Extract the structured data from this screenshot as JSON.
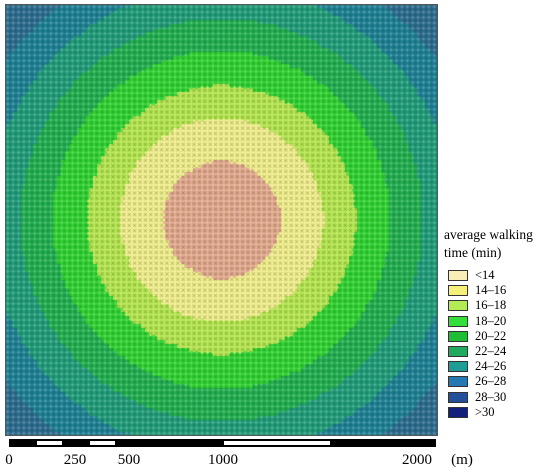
{
  "legend": {
    "title_line1": "average walking",
    "title_line2": "time (min)",
    "items": [
      {
        "label": "<14",
        "color": "#f8efb8"
      },
      {
        "label": "14–16",
        "color": "#f4f07a"
      },
      {
        "label": "16–18",
        "color": "#b4ea55"
      },
      {
        "label": "18–20",
        "color": "#33e03a"
      },
      {
        "label": "20–22",
        "color": "#1ebd36"
      },
      {
        "label": "22–24",
        "color": "#1faa5d"
      },
      {
        "label": "24–26",
        "color": "#1f9c94"
      },
      {
        "label": "26–28",
        "color": "#2479b2"
      },
      {
        "label": "28–30",
        "color": "#234f9a"
      },
      {
        "label": ">30",
        "color": "#12207a"
      }
    ]
  },
  "grid_colors": {
    "center": "#e4a88c",
    "band_1": "#f2ee8a",
    "band_2": "#b5e64c",
    "band_3": "#2ed22e",
    "band_4": "#1fae4d",
    "band_5": "#1e9b78",
    "band_6": "#1b7f93",
    "band_7": "#2a6a8e"
  },
  "scale_bar": {
    "ticks": [
      "0",
      "250",
      "500",
      "1000",
      "2000"
    ],
    "unit": "(m)"
  }
}
